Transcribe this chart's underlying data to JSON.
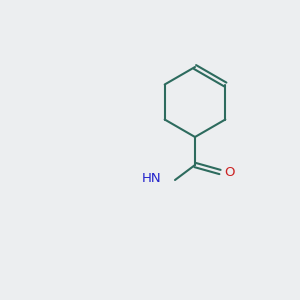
{
  "bg_color": "#eceef0",
  "bond_color": "#2d6b5e",
  "n_color": "#2222cc",
  "o_color": "#cc2222",
  "lw": 1.5,
  "lw_double": 1.4,
  "fontsize": 9.5,
  "figsize": [
    3.0,
    3.0
  ],
  "dpi": 100
}
